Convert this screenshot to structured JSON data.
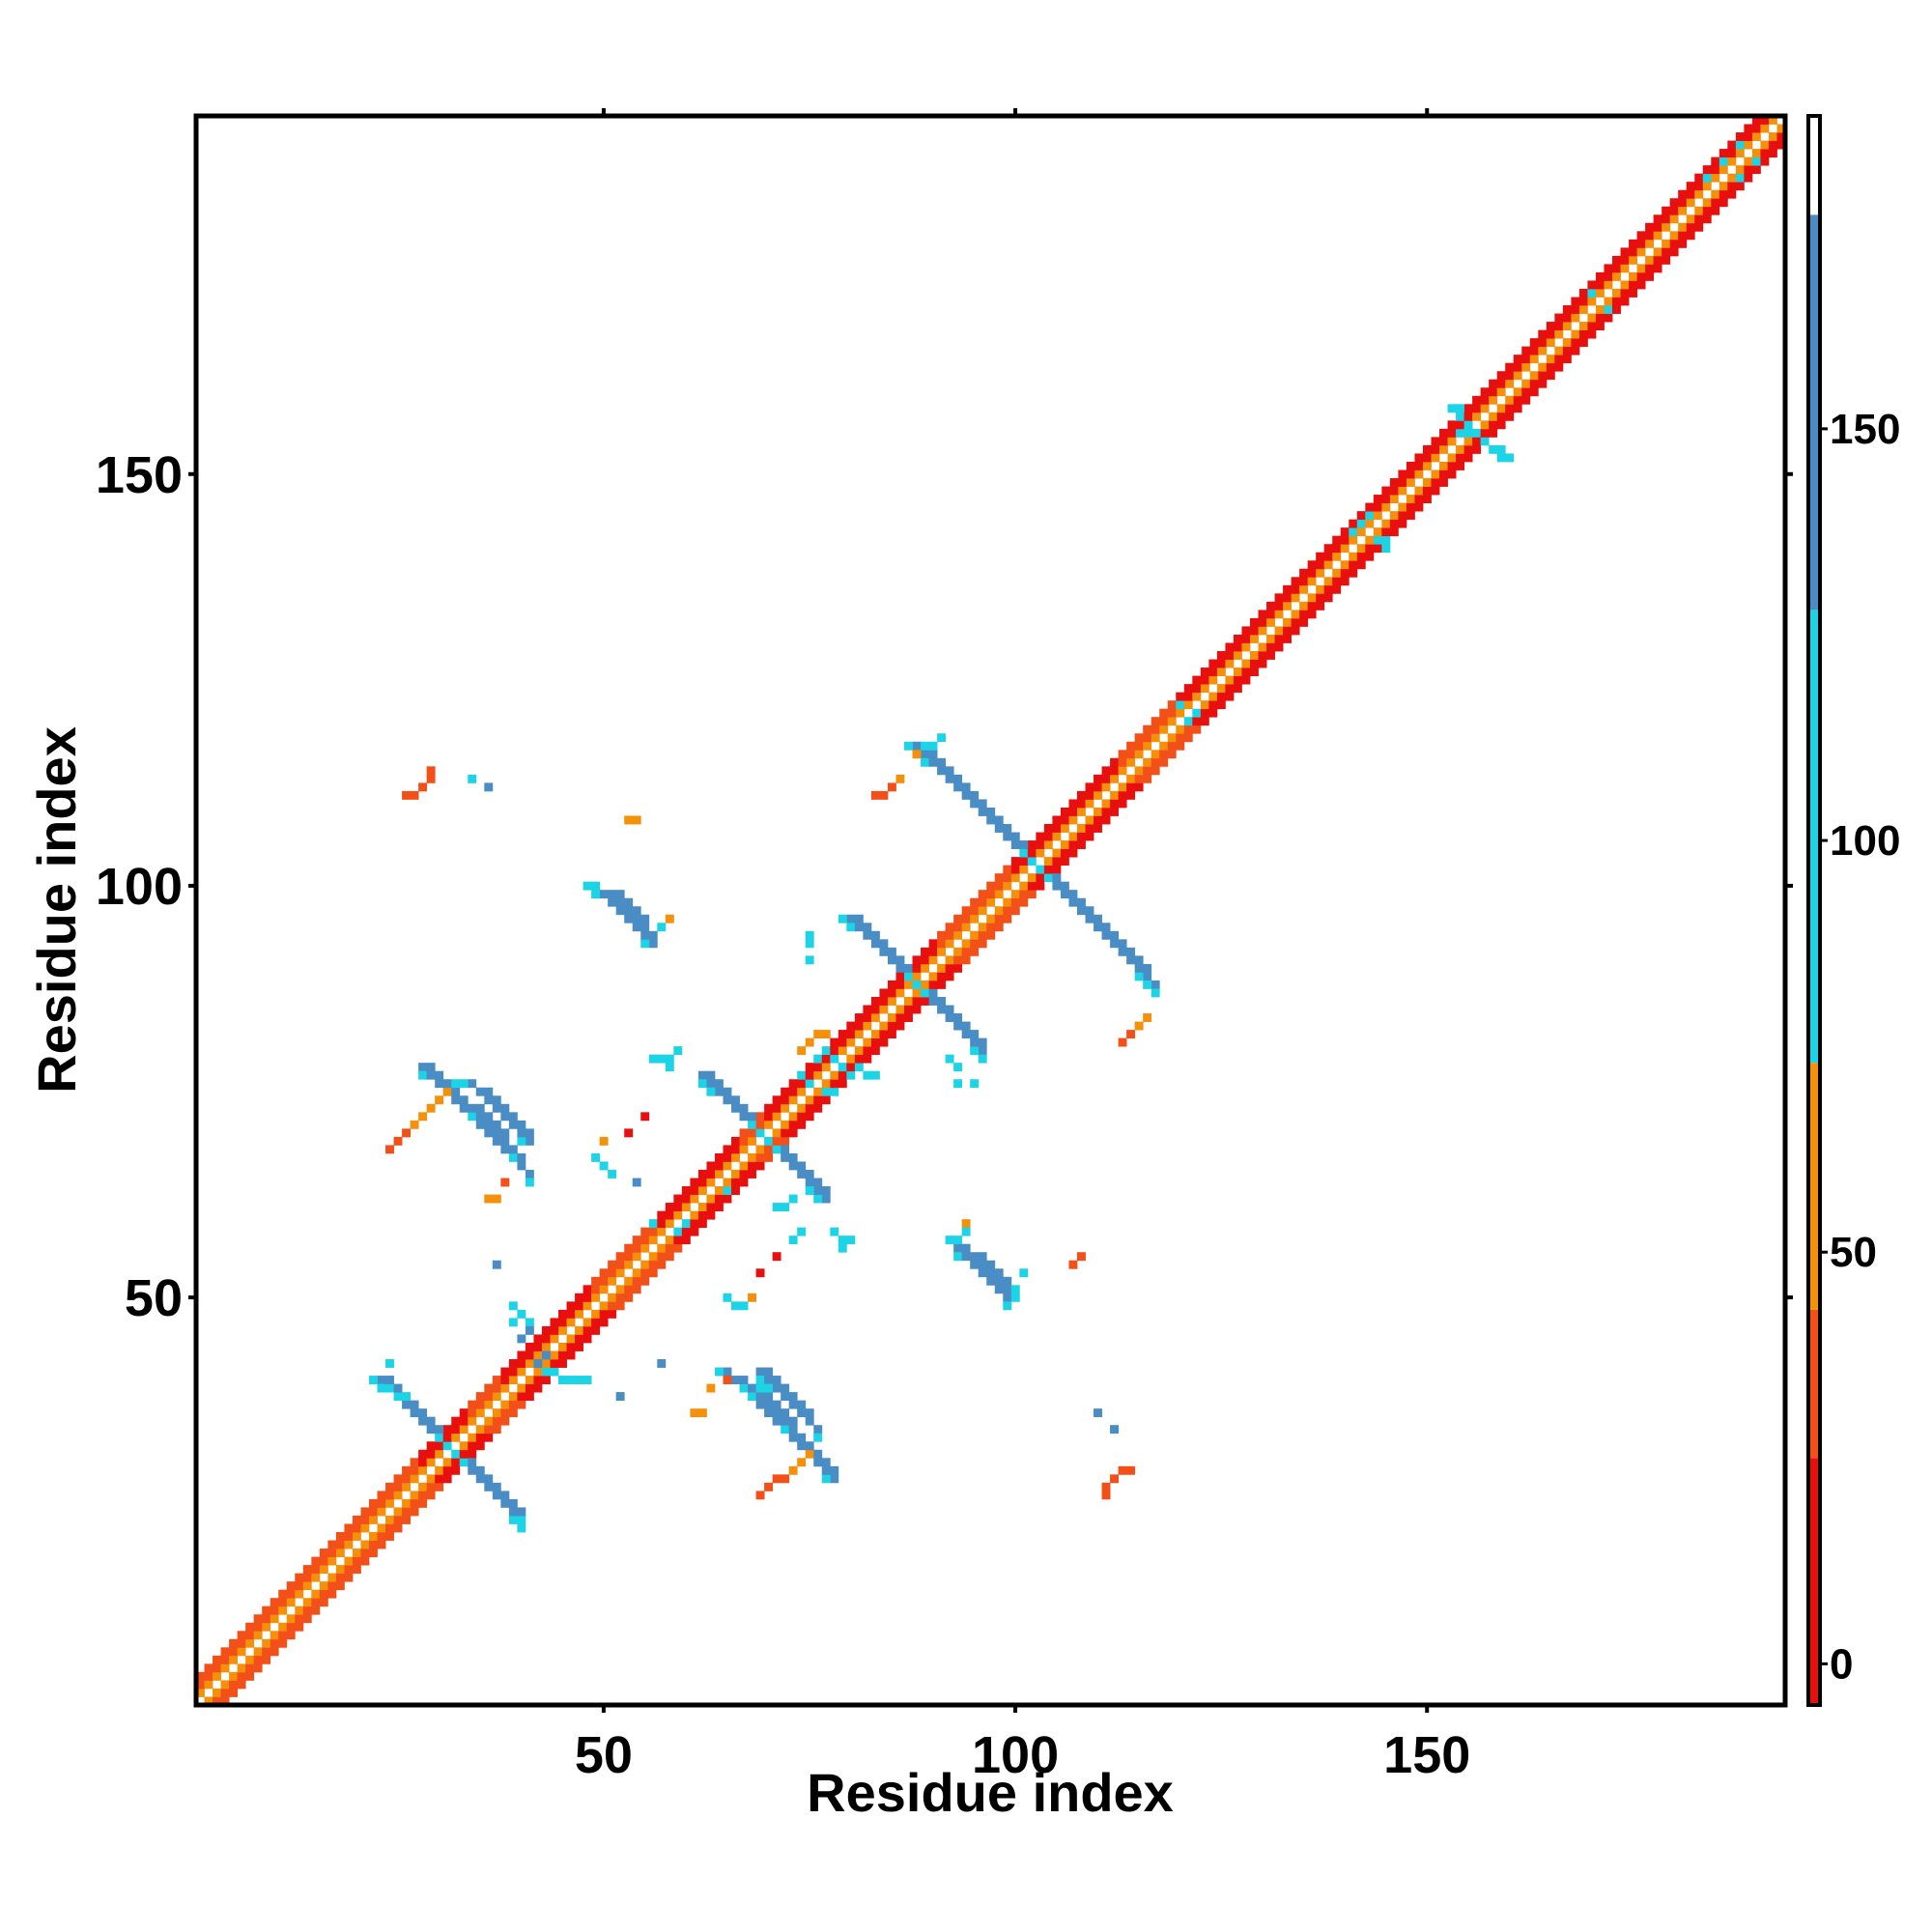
{
  "chart_data": {
    "type": "heatmap",
    "xlabel": "Residue index",
    "ylabel": "Residue index",
    "xlim": [
      1,
      193
    ],
    "ylim": [
      1,
      193
    ],
    "x_ticks": [
      50,
      100,
      150
    ],
    "y_ticks": [
      50,
      100,
      150
    ],
    "colorbar": {
      "ticks": [
        0,
        50,
        100,
        150
      ],
      "range": [
        -5,
        188
      ],
      "bands": [
        {
          "from": -5,
          "to": 25,
          "color": "#e80f0f"
        },
        {
          "from": 25,
          "to": 43,
          "color": "#f25018"
        },
        {
          "from": 43,
          "to": 73,
          "color": "#f5900a"
        },
        {
          "from": 73,
          "to": 128,
          "color": "#1cd4e6"
        },
        {
          "from": 128,
          "to": 176,
          "color": "#4a8cc4"
        },
        {
          "from": 176,
          "to": 188,
          "color": "#ffffff"
        }
      ]
    },
    "colors": {
      "red": "#e80f0f",
      "red_orange": "#f25018",
      "orange": "#f5900a",
      "cyan": "#1cd4e6",
      "blue": "#4a8cc4"
    },
    "diagonal_bands": [
      {
        "offset": 1,
        "color": "orange"
      },
      {
        "offset": 2,
        "color": "red"
      },
      {
        "offset": 3,
        "color": "red_orange"
      }
    ],
    "helix_ranges": [
      [
        28,
        33
      ],
      [
        38,
        48
      ],
      [
        57,
        66
      ],
      [
        70,
        90
      ],
      [
        100,
        112
      ],
      [
        120,
        193
      ]
    ],
    "antiparallel_strands": [
      {
        "sum": 63,
        "from": 23,
        "to": 40,
        "color": "blue"
      },
      {
        "sum": 106,
        "from": 28,
        "to": 41,
        "color": "blue"
      },
      {
        "sum": 107,
        "from": 34,
        "to": 39,
        "color": "blue"
      },
      {
        "sum": 176,
        "from": 80,
        "to": 96,
        "color": "blue"
      },
      {
        "sum": 205,
        "from": 89,
        "to": 117,
        "color": "blue"
      },
      {
        "sum": 150,
        "from": 51,
        "to": 56,
        "color": "blue"
      },
      {
        "sum": 139,
        "from": 62,
        "to": 75,
        "color": "blue"
      },
      {
        "sum": 149,
        "from": 93,
        "to": 99,
        "color": "blue"
      },
      {
        "sum": 110,
        "from": 69,
        "to": 76,
        "color": "blue"
      }
    ],
    "points": [
      {
        "x": 26,
        "y": 111,
        "c": "red_orange"
      },
      {
        "x": 27,
        "y": 111,
        "c": "red_orange"
      },
      {
        "x": 28,
        "y": 112,
        "c": "red_orange"
      },
      {
        "x": 29,
        "y": 113,
        "c": "red_orange"
      },
      {
        "x": 29,
        "y": 114,
        "c": "red_orange"
      },
      {
        "x": 34,
        "y": 113,
        "c": "cyan"
      },
      {
        "x": 36,
        "y": 112,
        "c": "blue"
      },
      {
        "x": 24,
        "y": 68,
        "c": "red_orange"
      },
      {
        "x": 25,
        "y": 69,
        "c": "red_orange"
      },
      {
        "x": 26,
        "y": 70,
        "c": "red_orange"
      },
      {
        "x": 27,
        "y": 71,
        "c": "orange"
      },
      {
        "x": 28,
        "y": 72,
        "c": "orange"
      },
      {
        "x": 29,
        "y": 73,
        "c": "orange"
      },
      {
        "x": 30,
        "y": 74,
        "c": "orange"
      },
      {
        "x": 31,
        "y": 75,
        "c": "orange"
      },
      {
        "x": 32,
        "y": 76,
        "c": "cyan"
      },
      {
        "x": 38,
        "y": 64,
        "c": "red_orange"
      },
      {
        "x": 36,
        "y": 62,
        "c": "orange"
      },
      {
        "x": 37,
        "y": 62,
        "c": "orange"
      },
      {
        "x": 37,
        "y": 54,
        "c": "blue"
      },
      {
        "x": 40,
        "y": 23,
        "c": "cyan"
      },
      {
        "x": 53,
        "y": 108,
        "c": "orange"
      },
      {
        "x": 54,
        "y": 108,
        "c": "orange"
      },
      {
        "x": 48,
        "y": 100,
        "c": "cyan"
      },
      {
        "x": 49,
        "y": 100,
        "c": "cyan"
      },
      {
        "x": 58,
        "y": 96,
        "c": "orange"
      },
      {
        "x": 57,
        "y": 95,
        "c": "cyan"
      },
      {
        "x": 56,
        "y": 79,
        "c": "cyan"
      },
      {
        "x": 57,
        "y": 79,
        "c": "cyan"
      },
      {
        "x": 58,
        "y": 79,
        "c": "cyan"
      },
      {
        "x": 59,
        "y": 80,
        "c": "cyan"
      },
      {
        "x": 58,
        "y": 78,
        "c": "cyan"
      },
      {
        "x": 50,
        "y": 69,
        "c": "orange"
      },
      {
        "x": 49,
        "y": 67,
        "c": "cyan"
      },
      {
        "x": 50,
        "y": 66,
        "c": "cyan"
      },
      {
        "x": 51,
        "y": 65,
        "c": "cyan"
      },
      {
        "x": 53,
        "y": 70,
        "c": "red"
      },
      {
        "x": 55,
        "y": 72,
        "c": "red"
      },
      {
        "x": 54,
        "y": 64,
        "c": "blue"
      },
      {
        "x": 60,
        "y": 59,
        "c": "cyan"
      },
      {
        "x": 59,
        "y": 58,
        "c": "cyan"
      },
      {
        "x": 56,
        "y": 59,
        "c": "cyan"
      },
      {
        "x": 65,
        "y": 50,
        "c": "cyan"
      },
      {
        "x": 66,
        "y": 49,
        "c": "cyan"
      },
      {
        "x": 67,
        "y": 49,
        "c": "cyan"
      },
      {
        "x": 68,
        "y": 50,
        "c": "orange"
      },
      {
        "x": 69,
        "y": 53,
        "c": "red"
      },
      {
        "x": 71,
        "y": 55,
        "c": "red"
      },
      {
        "x": 73,
        "y": 57,
        "c": "cyan"
      },
      {
        "x": 74,
        "y": 58,
        "c": "cyan"
      },
      {
        "x": 79,
        "y": 56,
        "c": "cyan"
      },
      {
        "x": 79,
        "y": 57,
        "c": "cyan"
      },
      {
        "x": 78,
        "y": 58,
        "c": "cyan"
      },
      {
        "x": 80,
        "y": 57,
        "c": "cyan"
      },
      {
        "x": 71,
        "y": 61,
        "c": "cyan"
      },
      {
        "x": 72,
        "y": 61,
        "c": "cyan"
      },
      {
        "x": 73,
        "y": 62,
        "c": "cyan"
      },
      {
        "x": 65,
        "y": 63,
        "c": "cyan"
      },
      {
        "x": 65,
        "y": 40,
        "c": "red_orange"
      },
      {
        "x": 63,
        "y": 39,
        "c": "orange"
      },
      {
        "x": 61,
        "y": 36,
        "c": "orange"
      },
      {
        "x": 62,
        "y": 36,
        "c": "orange"
      },
      {
        "x": 69,
        "y": 26,
        "c": "red_orange"
      },
      {
        "x": 70,
        "y": 27,
        "c": "red_orange"
      },
      {
        "x": 71,
        "y": 28,
        "c": "red_orange"
      },
      {
        "x": 72,
        "y": 28,
        "c": "red_orange"
      },
      {
        "x": 73,
        "y": 29,
        "c": "orange"
      },
      {
        "x": 74,
        "y": 30,
        "c": "orange"
      },
      {
        "x": 75,
        "y": 31,
        "c": "orange"
      },
      {
        "x": 57,
        "y": 42,
        "c": "blue"
      },
      {
        "x": 83,
        "y": 111,
        "c": "red_orange"
      },
      {
        "x": 84,
        "y": 111,
        "c": "red_orange"
      },
      {
        "x": 85,
        "y": 112,
        "c": "red_orange"
      },
      {
        "x": 86,
        "y": 113,
        "c": "orange"
      },
      {
        "x": 75,
        "y": 93,
        "c": "cyan"
      },
      {
        "x": 75,
        "y": 94,
        "c": "cyan"
      },
      {
        "x": 75,
        "y": 91,
        "c": "cyan"
      },
      {
        "x": 74,
        "y": 80,
        "c": "orange"
      },
      {
        "x": 75,
        "y": 81,
        "c": "orange"
      },
      {
        "x": 76,
        "y": 82,
        "c": "orange"
      },
      {
        "x": 77,
        "y": 82,
        "c": "orange"
      },
      {
        "x": 76,
        "y": 79,
        "c": "cyan"
      },
      {
        "x": 77,
        "y": 80,
        "c": "cyan"
      },
      {
        "x": 78,
        "y": 79,
        "c": "cyan"
      },
      {
        "x": 79,
        "y": 78,
        "c": "cyan"
      },
      {
        "x": 80,
        "y": 77,
        "c": "cyan"
      },
      {
        "x": 81,
        "y": 78,
        "c": "cyan"
      },
      {
        "x": 82,
        "y": 77,
        "c": "cyan"
      },
      {
        "x": 83,
        "y": 77,
        "c": "cyan"
      },
      {
        "x": 74,
        "y": 77,
        "c": "cyan"
      },
      {
        "x": 75,
        "y": 76,
        "c": "cyan"
      },
      {
        "x": 77,
        "y": 75,
        "c": "cyan"
      },
      {
        "x": 78,
        "y": 75,
        "c": "cyan"
      },
      {
        "x": 93,
        "y": 76,
        "c": "cyan"
      },
      {
        "x": 95,
        "y": 76,
        "c": "cyan"
      },
      {
        "x": 92,
        "y": 79,
        "c": "cyan"
      },
      {
        "x": 93,
        "y": 78,
        "c": "cyan"
      },
      {
        "x": 94,
        "y": 59,
        "c": "orange"
      },
      {
        "x": 94,
        "y": 58,
        "c": "cyan"
      },
      {
        "x": 93,
        "y": 57,
        "c": "cyan"
      },
      {
        "x": 92,
        "y": 57,
        "c": "cyan"
      },
      {
        "x": 100,
        "y": 50,
        "c": "cyan"
      },
      {
        "x": 100,
        "y": 51,
        "c": "cyan"
      },
      {
        "x": 101,
        "y": 53,
        "c": "cyan"
      },
      {
        "x": 99,
        "y": 52,
        "c": "blue"
      },
      {
        "x": 107,
        "y": 54,
        "c": "red_orange"
      },
      {
        "x": 108,
        "y": 55,
        "c": "red_orange"
      },
      {
        "x": 110,
        "y": 36,
        "c": "blue"
      },
      {
        "x": 112,
        "y": 34,
        "c": "blue"
      },
      {
        "x": 111,
        "y": 26,
        "c": "red_orange"
      },
      {
        "x": 111,
        "y": 27,
        "c": "red_orange"
      },
      {
        "x": 112,
        "y": 28,
        "c": "red_orange"
      },
      {
        "x": 113,
        "y": 29,
        "c": "red_orange"
      },
      {
        "x": 114,
        "y": 29,
        "c": "red_orange"
      },
      {
        "x": 113,
        "y": 81,
        "c": "red_orange"
      },
      {
        "x": 114,
        "y": 82,
        "c": "red_orange"
      },
      {
        "x": 115,
        "y": 83,
        "c": "orange"
      },
      {
        "x": 116,
        "y": 84,
        "c": "orange"
      },
      {
        "x": 116,
        "y": 88,
        "c": "cyan"
      },
      {
        "x": 117,
        "y": 87,
        "c": "cyan"
      },
      {
        "x": 88,
        "y": 116,
        "c": "orange"
      },
      {
        "x": 89,
        "y": 117,
        "c": "cyan"
      },
      {
        "x": 90,
        "y": 117,
        "c": "cyan"
      },
      {
        "x": 91,
        "y": 118,
        "c": "cyan"
      },
      {
        "x": 68,
        "y": 38,
        "c": "cyan"
      },
      {
        "x": 69,
        "y": 39,
        "c": "cyan"
      },
      {
        "x": 70,
        "y": 39,
        "c": "cyan"
      },
      {
        "x": 76,
        "y": 33,
        "c": "cyan"
      },
      {
        "x": 75,
        "y": 32,
        "c": "blue"
      },
      {
        "x": 24,
        "y": 39,
        "c": "cyan"
      },
      {
        "x": 24,
        "y": 42,
        "c": "cyan"
      },
      {
        "x": 25,
        "y": 38,
        "c": "cyan"
      },
      {
        "x": 26,
        "y": 38,
        "c": "cyan"
      },
      {
        "x": 39,
        "y": 47,
        "c": "cyan"
      },
      {
        "x": 39,
        "y": 49,
        "c": "cyan"
      },
      {
        "x": 40,
        "y": 48,
        "c": "cyan"
      },
      {
        "x": 41,
        "y": 47,
        "c": "cyan"
      },
      {
        "x": 43,
        "y": 41,
        "c": "cyan"
      },
      {
        "x": 44,
        "y": 41,
        "c": "cyan"
      },
      {
        "x": 45,
        "y": 40,
        "c": "cyan"
      },
      {
        "x": 46,
        "y": 40,
        "c": "cyan"
      },
      {
        "x": 47,
        "y": 40,
        "c": "cyan"
      },
      {
        "x": 48,
        "y": 40,
        "c": "cyan"
      },
      {
        "x": 42,
        "y": 42,
        "c": "blue"
      },
      {
        "x": 43,
        "y": 43,
        "c": "blue"
      },
      {
        "x": 40,
        "y": 45,
        "c": "blue"
      },
      {
        "x": 41,
        "y": 46,
        "c": "blue"
      },
      {
        "x": 52,
        "y": 38,
        "c": "blue"
      },
      {
        "x": 155,
        "y": 155,
        "c": "cyan"
      },
      {
        "x": 156,
        "y": 155,
        "c": "cyan"
      },
      {
        "x": 155,
        "y": 156,
        "c": "cyan"
      },
      {
        "x": 154,
        "y": 155,
        "c": "cyan"
      },
      {
        "x": 157,
        "y": 154,
        "c": "cyan"
      },
      {
        "x": 158,
        "y": 153,
        "c": "cyan"
      },
      {
        "x": 159,
        "y": 152,
        "c": "cyan"
      },
      {
        "x": 160,
        "y": 152,
        "c": "cyan"
      },
      {
        "x": 159,
        "y": 153,
        "c": "cyan"
      },
      {
        "x": 154,
        "y": 157,
        "c": "cyan"
      },
      {
        "x": 153,
        "y": 158,
        "c": "cyan"
      },
      {
        "x": 154,
        "y": 158,
        "c": "cyan"
      },
      {
        "x": 141,
        "y": 143,
        "c": "cyan"
      },
      {
        "x": 142,
        "y": 144,
        "c": "cyan"
      },
      {
        "x": 143,
        "y": 145,
        "c": "cyan"
      },
      {
        "x": 144,
        "y": 142,
        "c": "cyan"
      },
      {
        "x": 145,
        "y": 141,
        "c": "cyan"
      },
      {
        "x": 145,
        "y": 142,
        "c": "cyan"
      },
      {
        "x": 121,
        "y": 120,
        "c": "cyan"
      },
      {
        "x": 122,
        "y": 121,
        "c": "cyan"
      },
      {
        "x": 120,
        "y": 122,
        "c": "cyan"
      },
      {
        "x": 184,
        "y": 186,
        "c": "cyan"
      },
      {
        "x": 186,
        "y": 188,
        "c": "cyan"
      },
      {
        "x": 188,
        "y": 190,
        "c": "cyan"
      },
      {
        "x": 190,
        "y": 188,
        "c": "cyan"
      },
      {
        "x": 188,
        "y": 186,
        "c": "cyan"
      },
      {
        "x": 170,
        "y": 172,
        "c": "cyan"
      },
      {
        "x": 172,
        "y": 170,
        "c": "cyan"
      }
    ]
  }
}
